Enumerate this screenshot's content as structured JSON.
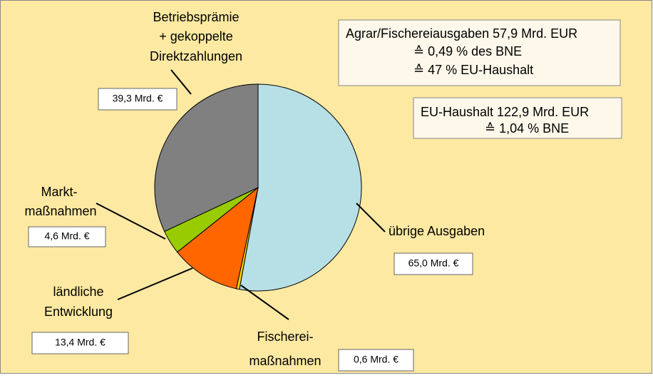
{
  "chart_data": {
    "type": "pie",
    "categories": [
      [
        "übrige Ausgaben"
      ],
      [
        "Fischerei-",
        "maßnahmen"
      ],
      [
        "ländliche",
        "Entwicklung"
      ],
      [
        "Markt-",
        "maßnahmen"
      ],
      [
        "Betriebsprämie",
        "+ gekoppelte",
        "Direktzahlungen"
      ]
    ],
    "values": [
      65.0,
      0.6,
      13.4,
      4.6,
      39.3
    ],
    "value_labels": [
      "65,0 Mrd. €",
      "0,6 Mrd. €",
      "13,4 Mrd. €",
      "4,6 Mrd. €",
      "39,3 Mrd. €"
    ],
    "colors": [
      "#b7dfe6",
      "#ffcc00",
      "#ff6600",
      "#99cc00",
      "#808080"
    ],
    "annotations": [
      [
        "Agrar/Fischereiausgaben 57,9 Mrd. EUR",
        "≙ 0,49 % des BNE",
        "≙ 47 % EU-Haushalt"
      ],
      [
        "EU-Haushalt 122,9 Mrd. EUR",
        "≙ 1,04 % BNE"
      ]
    ]
  }
}
